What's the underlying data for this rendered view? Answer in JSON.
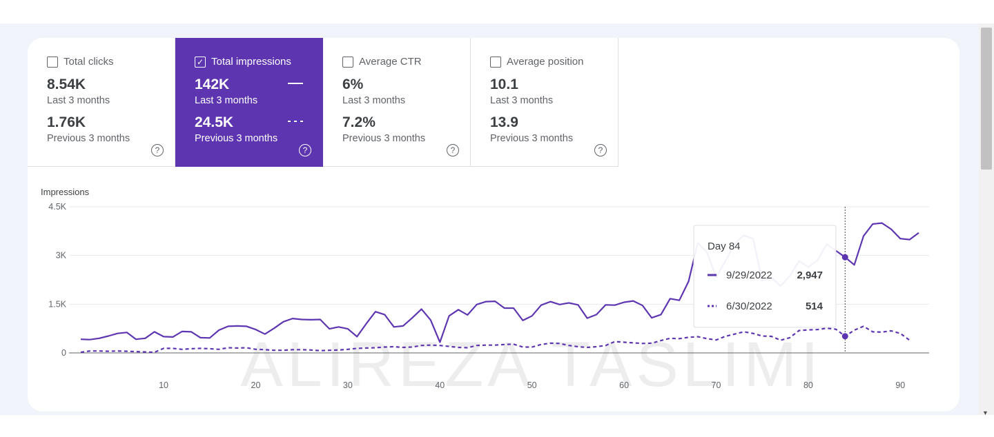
{
  "metrics": [
    {
      "label": "Total clicks",
      "value": "8.54K",
      "period": "Last 3 months",
      "prev_value": "1.76K",
      "prev_period": "Previous 3 months",
      "checked": false
    },
    {
      "label": "Total impressions",
      "value": "142K",
      "period": "Last 3 months",
      "prev_value": "24.5K",
      "prev_period": "Previous 3 months",
      "checked": true
    },
    {
      "label": "Average CTR",
      "value": "6%",
      "period": "Last 3 months",
      "prev_value": "7.2%",
      "prev_period": "Previous 3 months",
      "checked": false
    },
    {
      "label": "Average position",
      "value": "10.1",
      "period": "Last 3 months",
      "prev_value": "13.9",
      "prev_period": "Previous 3 months",
      "checked": false
    }
  ],
  "colors": {
    "accent": "#5e35b1",
    "current_line": "#5e35b1",
    "previous_line": "#5e35b1"
  },
  "icons": {
    "help": "help-circle-icon",
    "checkbox": "checkbox-icon"
  },
  "watermark": "ALIREZA TASLIMI",
  "tooltip": {
    "title": "Day 84",
    "rows": [
      {
        "date": "9/29/2022",
        "value": "2,947",
        "style": "solid"
      },
      {
        "date": "6/30/2022",
        "value": "514",
        "style": "dotted"
      }
    ]
  },
  "chart_data": {
    "type": "line",
    "ylabel": "Impressions",
    "ylim": [
      0,
      4500
    ],
    "yticks": [
      0,
      1500,
      3000,
      4500
    ],
    "ytick_labels": [
      "0",
      "1.5K",
      "3K",
      "4.5K"
    ],
    "xticks": [
      10,
      20,
      30,
      40,
      50,
      60,
      70,
      80,
      90
    ],
    "xlim": [
      1,
      92
    ],
    "grid": true,
    "highlight_x": 84,
    "series": [
      {
        "style": "solid",
        "values": [
          420,
          410,
          450,
          520,
          600,
          630,
          420,
          450,
          650,
          500,
          490,
          660,
          650,
          470,
          460,
          700,
          820,
          830,
          820,
          720,
          580,
          760,
          960,
          1060,
          1030,
          1020,
          1030,
          740,
          800,
          740,
          500,
          900,
          1270,
          1180,
          800,
          830,
          1080,
          1350,
          1010,
          330,
          1140,
          1330,
          1170,
          1490,
          1580,
          1590,
          1380,
          1380,
          1000,
          1140,
          1470,
          1580,
          1490,
          1540,
          1480,
          1070,
          1180,
          1480,
          1470,
          1560,
          1600,
          1460,
          1080,
          1180,
          1670,
          1620,
          2200,
          3390,
          3100,
          2330,
          2820,
          3360,
          3620,
          3520,
          2230,
          2320,
          2060,
          2370,
          2830,
          2640,
          2850,
          3350,
          3150,
          2947,
          2710,
          3600,
          3970,
          4000,
          3810,
          3520,
          3490,
          3700
        ]
      },
      {
        "style": "dashed",
        "values": [
          20,
          60,
          60,
          50,
          60,
          50,
          40,
          30,
          20,
          140,
          140,
          110,
          130,
          140,
          130,
          110,
          160,
          150,
          160,
          110,
          100,
          80,
          80,
          100,
          100,
          90,
          70,
          80,
          90,
          110,
          140,
          150,
          160,
          180,
          190,
          170,
          180,
          230,
          240,
          230,
          200,
          170,
          160,
          230,
          240,
          240,
          260,
          270,
          180,
          180,
          260,
          300,
          290,
          230,
          190,
          170,
          190,
          230,
          350,
          330,
          310,
          290,
          300,
          380,
          450,
          440,
          480,
          500,
          440,
          400,
          510,
          580,
          650,
          600,
          520,
          510,
          390,
          470,
          690,
          710,
          720,
          760,
          730,
          514,
          700,
          820,
          650,
          640,
          680,
          600,
          390
        ]
      }
    ]
  }
}
